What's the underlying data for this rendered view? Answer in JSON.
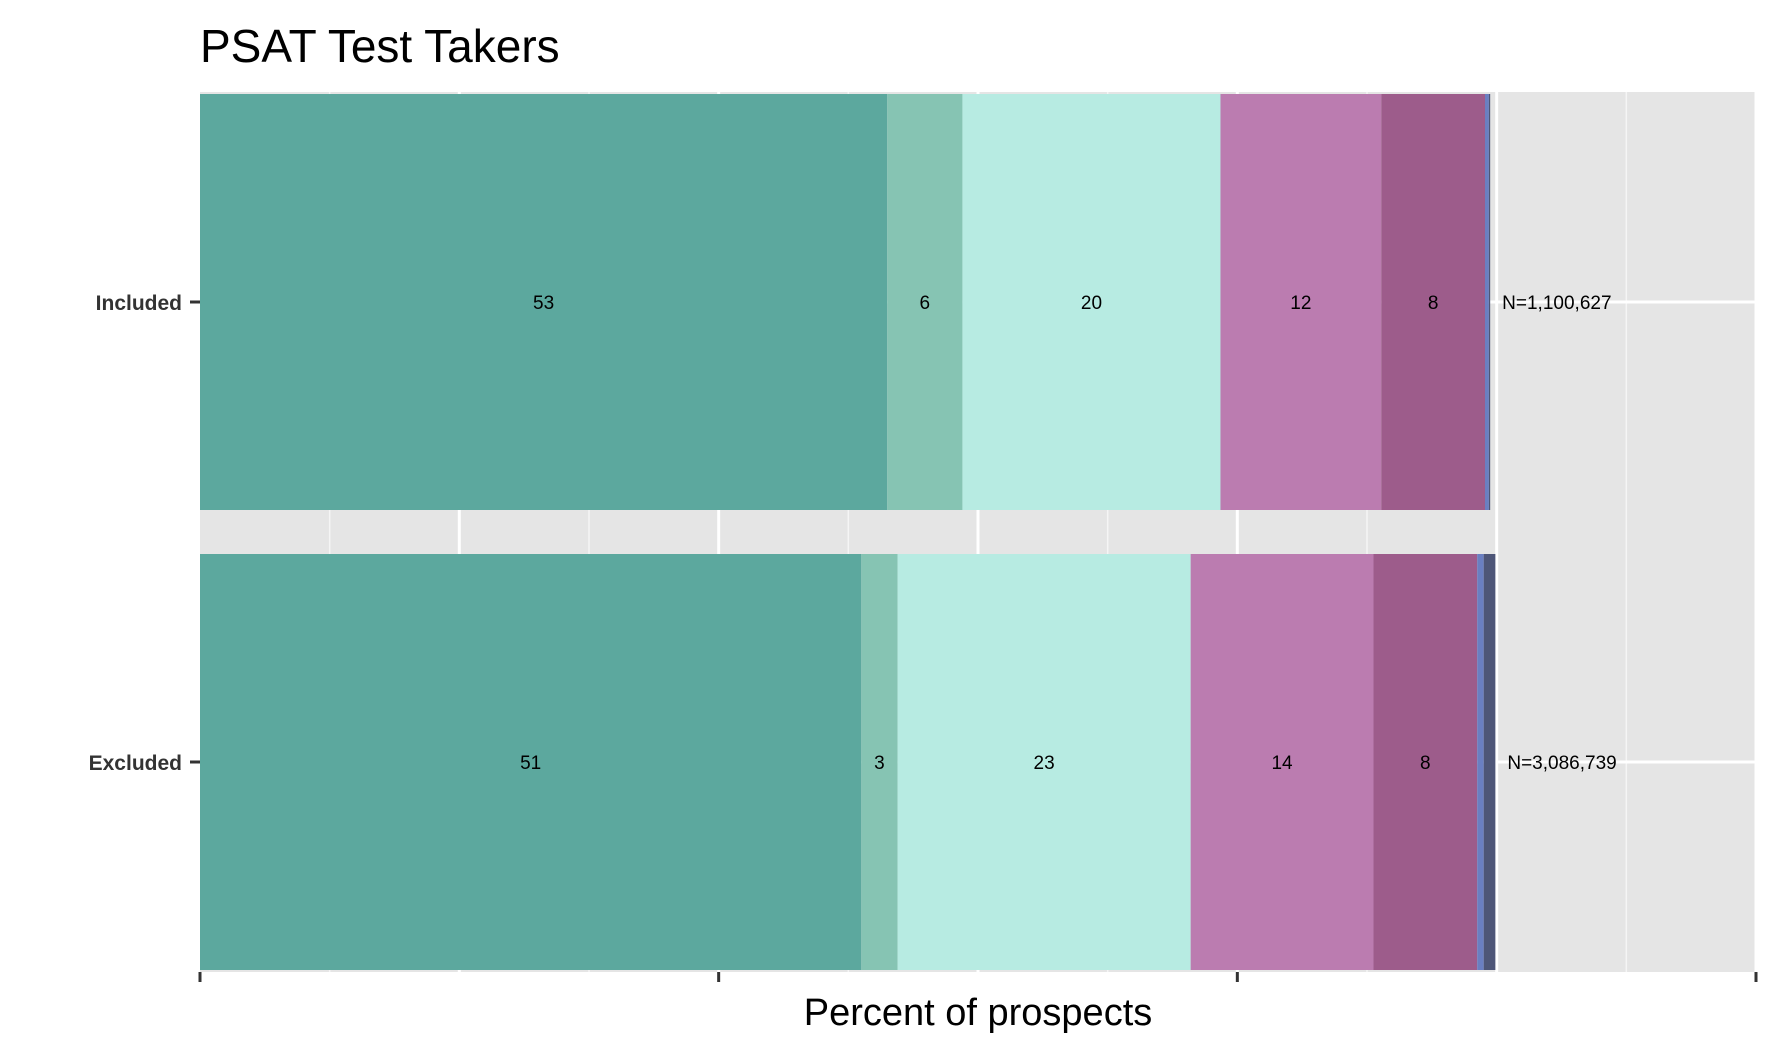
{
  "chart_data": {
    "type": "bar",
    "orientation": "horizontal",
    "stacked": true,
    "title": "PSAT Test Takers",
    "xlabel": "Percent of prospects",
    "ylabel": "",
    "xlim": [
      0,
      120
    ],
    "grid": true,
    "categories": [
      "Included",
      "Excluded"
    ],
    "annotations": [
      "N=1,100,627",
      "N=3,086,739"
    ],
    "series": [
      {
        "color": "#5ca89e",
        "values": [
          53,
          51
        ],
        "labels": [
          "53",
          "51"
        ]
      },
      {
        "color": "#86c4b3",
        "values": [
          5.8,
          2.8
        ],
        "labels": [
          "6",
          "3"
        ]
      },
      {
        "color": "#b7ebe2",
        "values": [
          19.9,
          22.6
        ],
        "labels": [
          "20",
          "23"
        ]
      },
      {
        "color": "#bb7cb0",
        "values": [
          12.4,
          14.1
        ],
        "labels": [
          "12",
          "14"
        ]
      },
      {
        "color": "#9d5c8b",
        "values": [
          8.0,
          8.0
        ],
        "labels": [
          "8",
          "8"
        ]
      },
      {
        "color": "#6a7fc2",
        "values": [
          0.3,
          0.5
        ],
        "labels": [
          "",
          ""
        ]
      },
      {
        "color": "#4e5678",
        "values": [
          0.1,
          0.9
        ],
        "labels": [
          "",
          ""
        ]
      }
    ]
  }
}
